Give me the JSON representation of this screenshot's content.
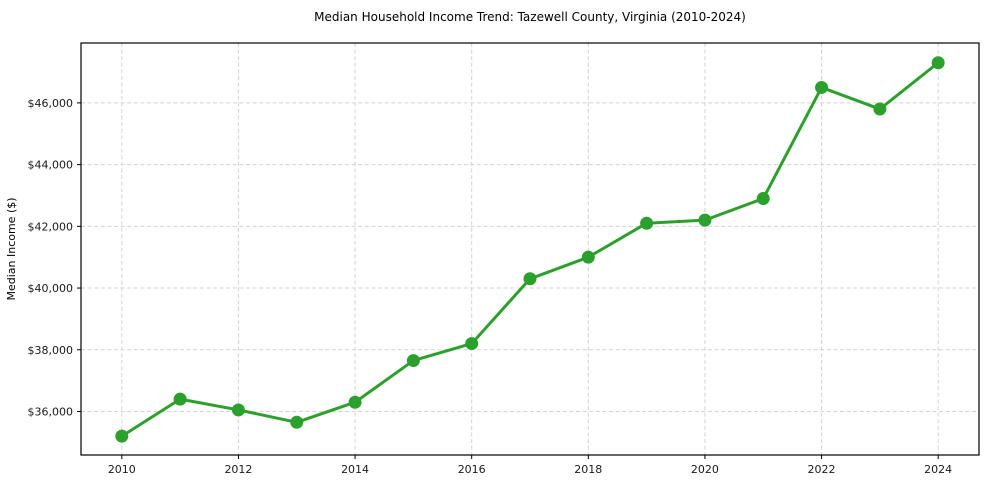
{
  "chart_data": {
    "type": "line",
    "title": "Median Household Income Trend: Tazewell County, Virginia (2010-2024)",
    "xlabel": "",
    "ylabel": "Median Income ($)",
    "x": [
      2010,
      2011,
      2012,
      2013,
      2014,
      2015,
      2016,
      2017,
      2018,
      2019,
      2020,
      2021,
      2022,
      2023,
      2024
    ],
    "values": [
      35200,
      36400,
      36050,
      35650,
      36300,
      37650,
      38200,
      40300,
      41000,
      42100,
      42200,
      42900,
      46500,
      45800,
      47300
    ],
    "x_ticks": [
      2010,
      2012,
      2014,
      2016,
      2018,
      2020,
      2022,
      2024
    ],
    "x_tick_labels": [
      "2010",
      "2012",
      "2014",
      "2016",
      "2018",
      "2020",
      "2022",
      "2024"
    ],
    "y_ticks": [
      36000,
      38000,
      40000,
      42000,
      44000,
      46000
    ],
    "y_tick_labels": [
      "$36,000",
      "$38,000",
      "$40,000",
      "$42,000",
      "$44,000",
      "$46,000"
    ],
    "xlim": [
      2009.3,
      2024.7
    ],
    "ylim": [
      34590,
      47940
    ],
    "grid": true,
    "grid_style": "dashed",
    "legend_position": "none",
    "line_color": "#2ca02c",
    "marker": "circle",
    "marker_color": "#2ca02c",
    "grid_color": "#d3d3d3",
    "background_color": "#ffffff"
  }
}
